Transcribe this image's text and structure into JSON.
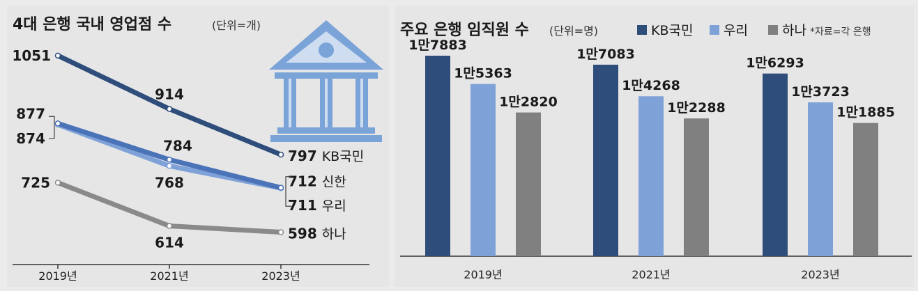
{
  "chart_data": [
    {
      "type": "line",
      "title": "4대 은행  국내 영업점 수",
      "unit": "(단위=개)",
      "categories": [
        "2019년",
        "2021년",
        "2023년"
      ],
      "series": [
        {
          "name": "KB국민",
          "values": [
            1051,
            914,
            797
          ],
          "labels": [
            "1051",
            "914",
            "797"
          ],
          "color": "#2e4d7b"
        },
        {
          "name": "신한",
          "values": [
            877,
            784,
            712
          ],
          "labels": [
            "877",
            "784",
            "712"
          ],
          "color": "#4a73b8"
        },
        {
          "name": "우리",
          "values": [
            874,
            768,
            711
          ],
          "labels": [
            "874",
            "768",
            "711"
          ],
          "color": "#7ea2d8"
        },
        {
          "name": "하나",
          "values": [
            725,
            614,
            598
          ],
          "labels": [
            "725",
            "614",
            "598"
          ],
          "color": "#8a8a8a"
        }
      ],
      "ylim": [
        540,
        1090
      ]
    },
    {
      "type": "bar",
      "title": "주요 은행 임직원 수",
      "unit": "(단위=명)",
      "note": "*자료=각 은행",
      "categories": [
        "2019년",
        "2021년",
        "2023년"
      ],
      "series": [
        {
          "name": "KB국민",
          "values": [
            17883,
            17083,
            16293
          ],
          "labels": [
            "1만7883",
            "1만7083",
            "1만6293"
          ],
          "color": "#2e4d7b"
        },
        {
          "name": "우리",
          "values": [
            15363,
            14268,
            13723
          ],
          "labels": [
            "1만5363",
            "1만4268",
            "1만3723"
          ],
          "color": "#7ea2d8"
        },
        {
          "name": "하나",
          "values": [
            12820,
            12288,
            11885
          ],
          "labels": [
            "1만2820",
            "1만2288",
            "1만1885"
          ],
          "color": "#808080"
        }
      ],
      "ylim": [
        0,
        19500
      ]
    }
  ]
}
